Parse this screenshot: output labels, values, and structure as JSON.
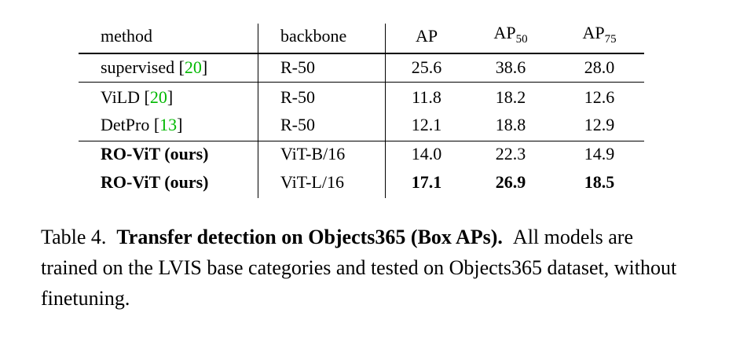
{
  "table": {
    "header": {
      "method": "method",
      "backbone": "backbone",
      "ap": "AP",
      "ap50": {
        "text": "AP",
        "sub": "50"
      },
      "ap75": {
        "text": "AP",
        "sub": "75"
      }
    },
    "rows": [
      {
        "method": "supervised",
        "ref": "20",
        "backbone": "R-50",
        "ap": "25.6",
        "ap50": "38.6",
        "ap75": "28.0"
      },
      {
        "method": "ViLD",
        "ref": "20",
        "backbone": "R-50",
        "ap": "11.8",
        "ap50": "18.2",
        "ap75": "12.6"
      },
      {
        "method": "DetPro",
        "ref": "13",
        "backbone": "R-50",
        "ap": "12.1",
        "ap50": "18.8",
        "ap75": "12.9"
      },
      {
        "method": "RO-ViT (ours)",
        "backbone": "ViT-B/16",
        "ap": "14.0",
        "ap50": "22.3",
        "ap75": "14.9"
      },
      {
        "method": "RO-ViT (ours)",
        "backbone": "ViT-L/16",
        "ap": "17.1",
        "ap50": "26.9",
        "ap75": "18.5"
      }
    ]
  },
  "caption": {
    "label": "Table 4.",
    "title": "Transfer detection on Objects365 (Box APs).",
    "text": "All models are trained on the LVIS base categories and tested on Objects365 dataset, without finetuning."
  }
}
